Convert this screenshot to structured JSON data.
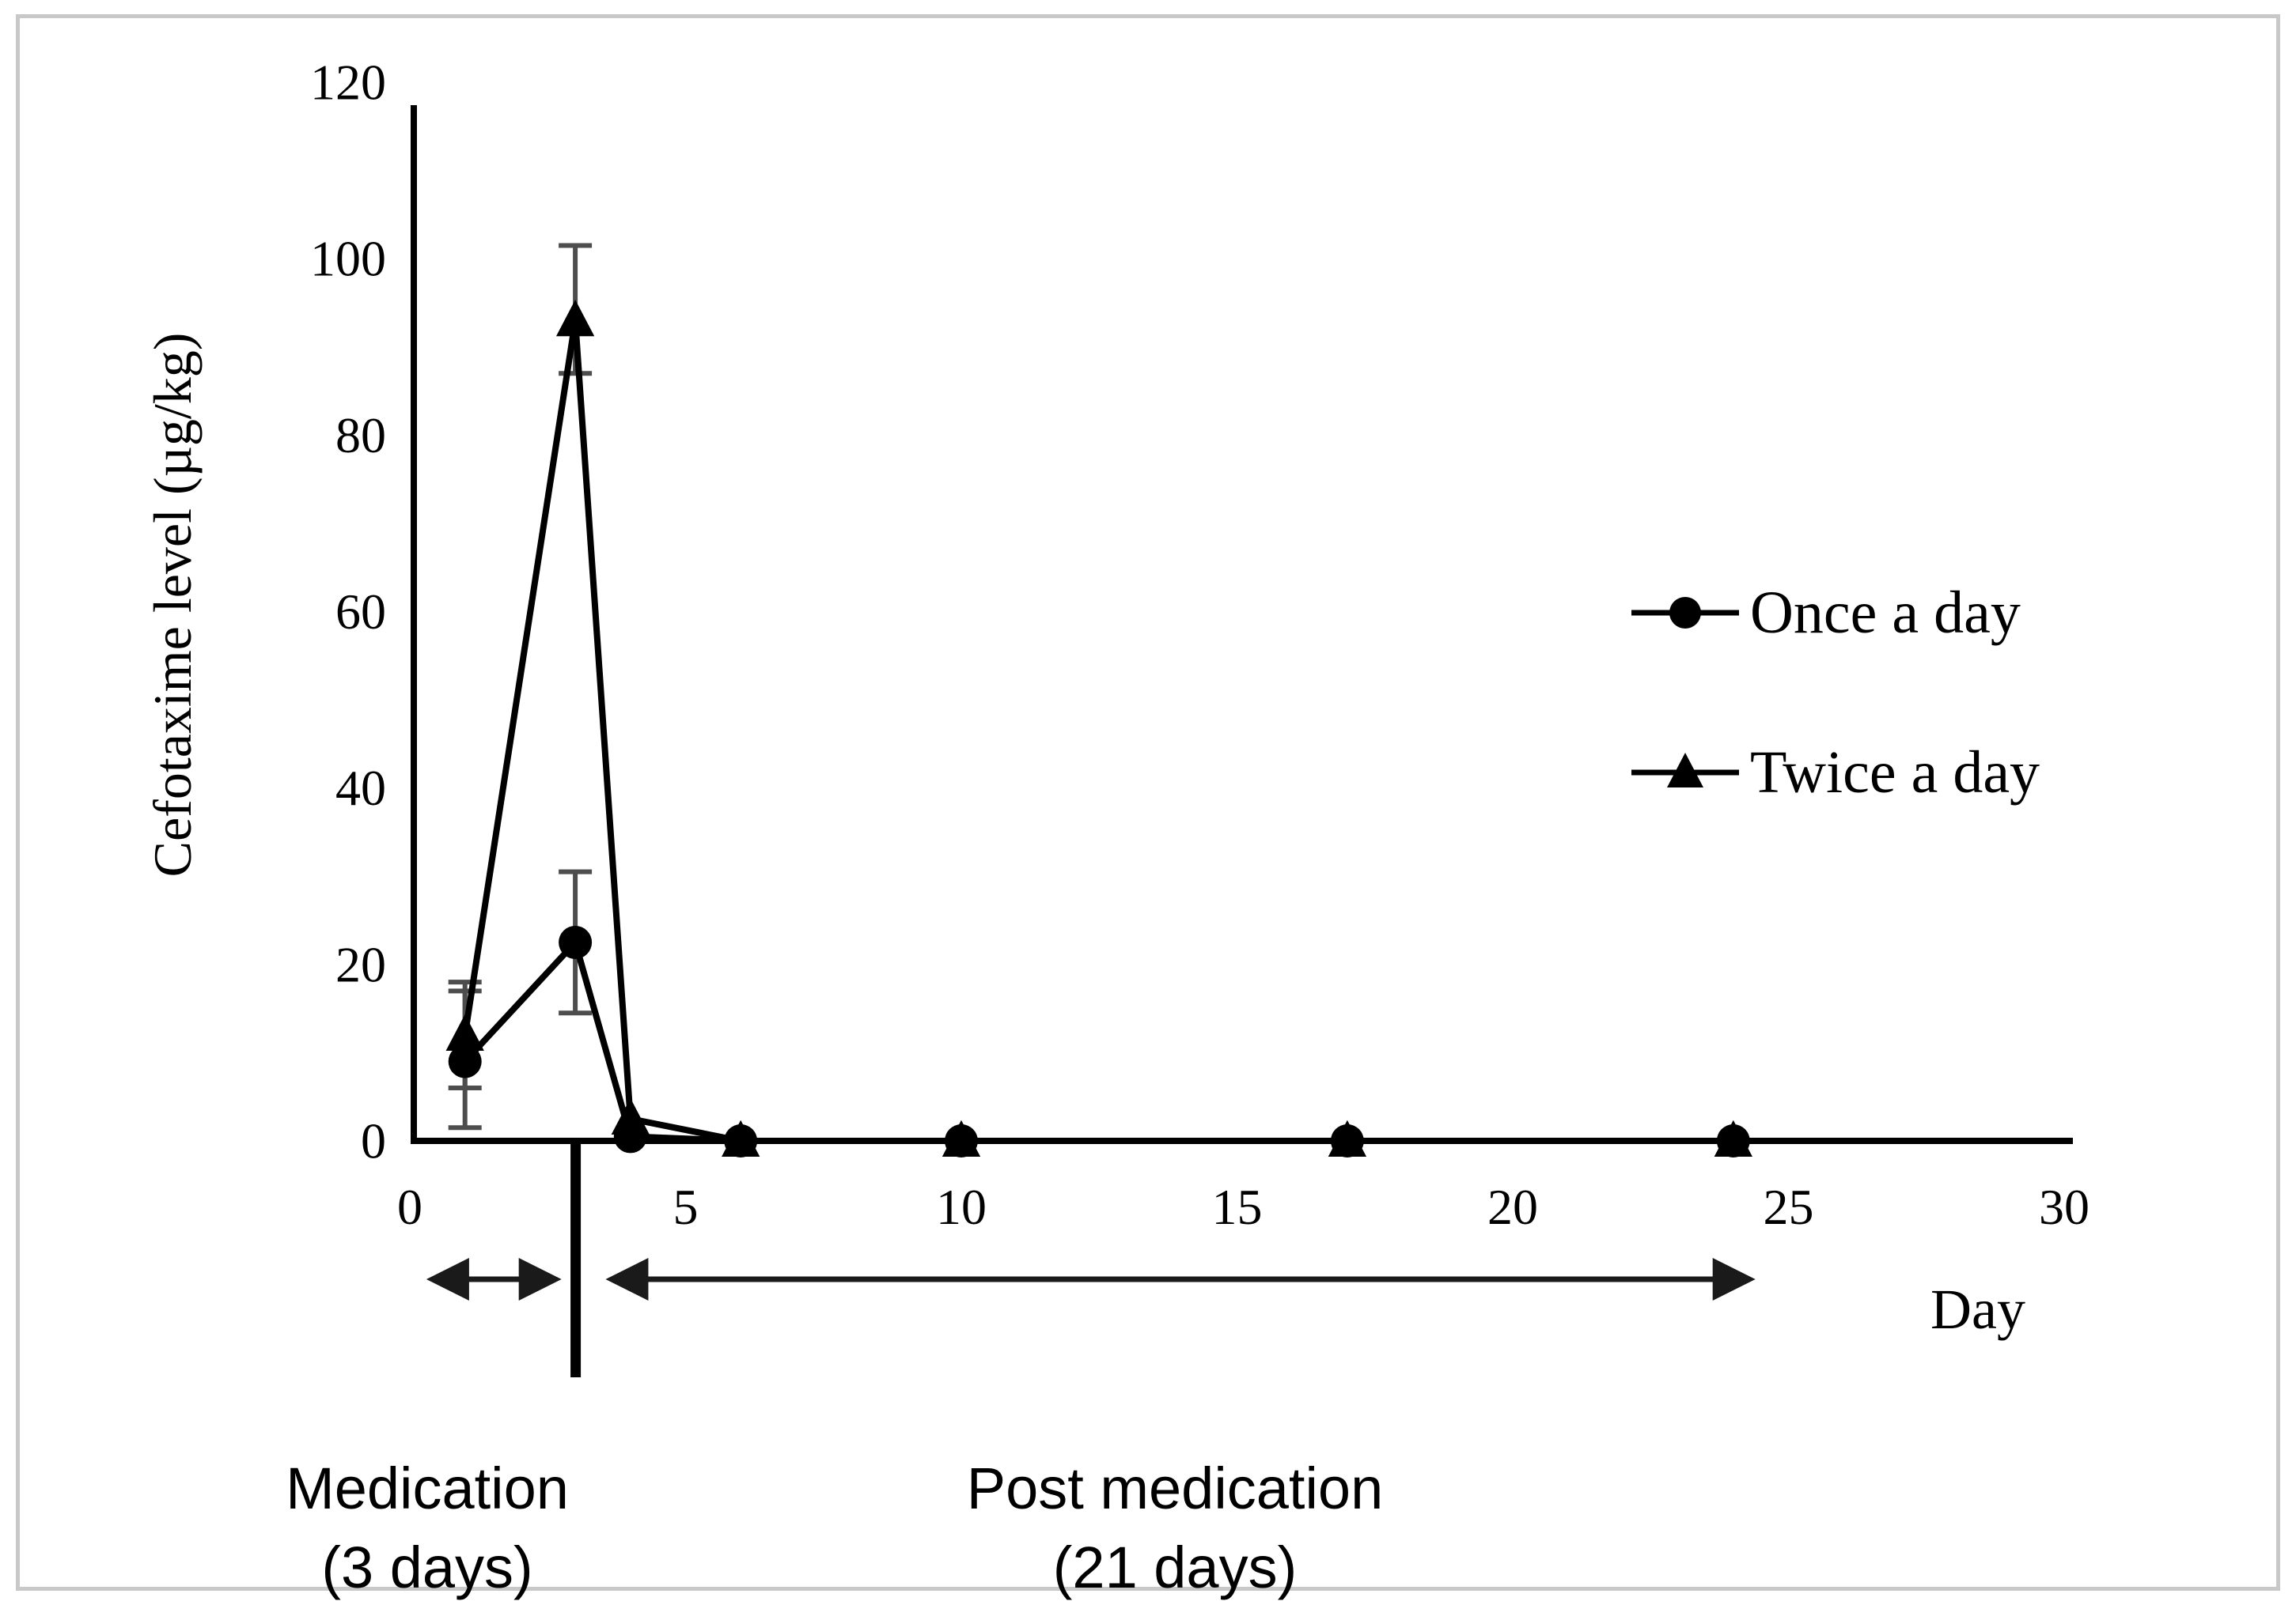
{
  "figure": {
    "background": "#ffffff",
    "frame_color": "#c8c8c8"
  },
  "chart_data": {
    "type": "line",
    "title": "",
    "xlabel": "Day",
    "ylabel": "Cefotaxime level (µg/kg)",
    "xlim": [
      0,
      31
    ],
    "ylim": [
      0,
      120
    ],
    "xticks": [
      0,
      5,
      10,
      15,
      20,
      25,
      30
    ],
    "yticks": [
      0,
      20,
      40,
      60,
      80,
      100,
      120
    ],
    "grid": false,
    "legend_position": "right-middle",
    "x": [
      1,
      3,
      4,
      6,
      10,
      17,
      24
    ],
    "series": [
      {
        "name": "Once a day",
        "marker": "circle",
        "values": [
          9,
          22.5,
          0.5,
          0,
          0,
          0,
          0
        ],
        "err_up": [
          8,
          8,
          0,
          0,
          0,
          0,
          0
        ],
        "err_down": [
          7.5,
          8,
          0,
          0,
          0,
          0,
          0
        ]
      },
      {
        "name": "Twice a day",
        "marker": "triangle",
        "values": [
          12,
          93,
          2.5,
          0,
          0,
          0,
          0
        ],
        "err_up": [
          6,
          8.5,
          0,
          0,
          0,
          0,
          0
        ],
        "err_down": [
          6,
          6,
          0,
          0,
          0,
          0,
          0
        ]
      }
    ],
    "colors": {
      "line": "#000000",
      "marker": "#000000",
      "error_bar": "#4d4d4d",
      "axis": "#000000",
      "text": "#000000"
    }
  },
  "annotations": {
    "divider_day": 3,
    "medication": {
      "line1": "Medication",
      "line2": "(3 days)",
      "span_days": [
        0.3,
        2.75
      ]
    },
    "post_medication": {
      "line1": "Post medication",
      "line2": "(21 days)",
      "span_days": [
        3.55,
        24.4
      ]
    }
  }
}
